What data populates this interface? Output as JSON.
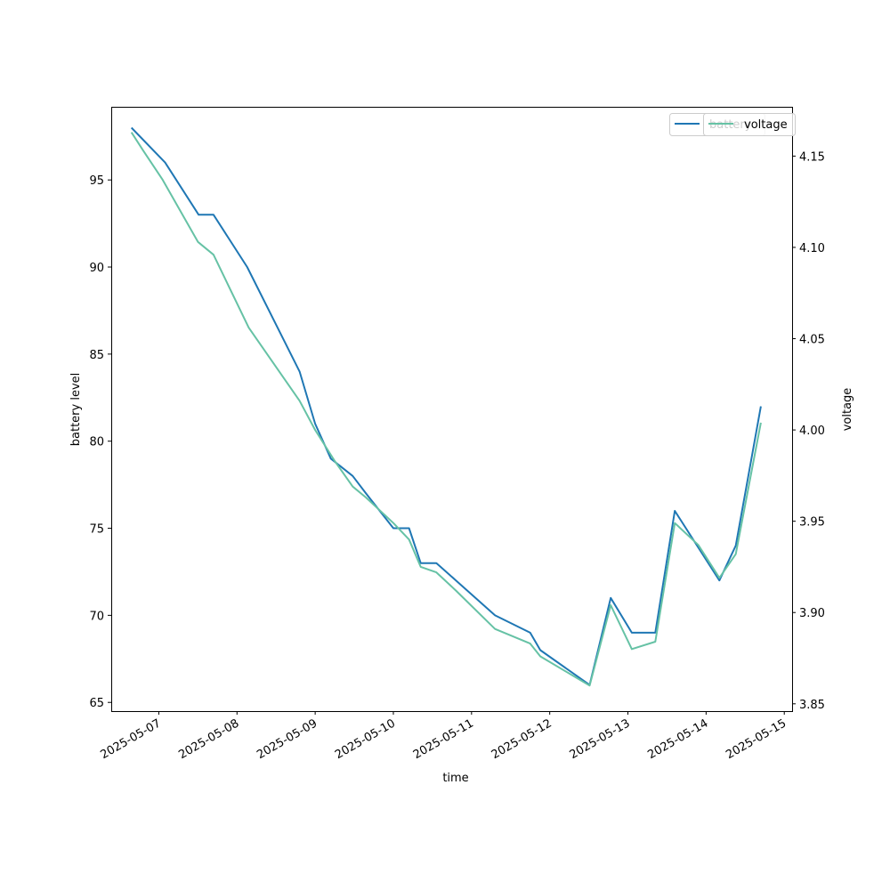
{
  "chart_data": {
    "type": "line",
    "xlabel": "time",
    "ylabel_left": "battery level",
    "ylabel_right": "voltage",
    "x_tick_labels": [
      "2025-05-07",
      "2025-05-08",
      "2025-05-09",
      "2025-05-10",
      "2025-05-11",
      "2025-05-12",
      "2025-05-13",
      "2025-05-14",
      "2025-05-15"
    ],
    "y_left_ticks": [
      65,
      70,
      75,
      80,
      85,
      90,
      95
    ],
    "y_right_ticks": [
      3.85,
      3.9,
      3.95,
      4.0,
      4.05,
      4.1,
      4.15
    ],
    "ylim_left": [
      64.5,
      99.2
    ],
    "ylim_right": [
      3.846,
      4.177
    ],
    "xlim": [
      "2025-05-06T09:24",
      "2025-05-15T02:24"
    ],
    "grid": false,
    "legend_left": {
      "placement": "top-right",
      "label": "battery"
    },
    "legend_right": {
      "placement": "top-right",
      "label": "voltage"
    },
    "series": [
      {
        "name": "battery",
        "axis": "left",
        "color": "#1f77b4",
        "points": [
          [
            "2025-05-06T15:36",
            98
          ],
          [
            "2025-05-07T01:55",
            96
          ],
          [
            "2025-05-07T12:14",
            93
          ],
          [
            "2025-05-07T16:48",
            93
          ],
          [
            "2025-05-08T03:07",
            90
          ],
          [
            "2025-05-08T19:12",
            84
          ],
          [
            "2025-05-09T00:00",
            81
          ],
          [
            "2025-05-09T04:48",
            79
          ],
          [
            "2025-05-09T11:31",
            78
          ],
          [
            "2025-05-09T15:36",
            77
          ],
          [
            "2025-05-10T00:00",
            75
          ],
          [
            "2025-05-10T04:48",
            75
          ],
          [
            "2025-05-10T08:24",
            73
          ],
          [
            "2025-05-10T13:12",
            73
          ],
          [
            "2025-05-10T19:12",
            72
          ],
          [
            "2025-05-11T07:12",
            70
          ],
          [
            "2025-05-11T18:00",
            69
          ],
          [
            "2025-05-11T21:07",
            68
          ],
          [
            "2025-05-12T12:14",
            66
          ],
          [
            "2025-05-12T18:43",
            71
          ],
          [
            "2025-05-13T01:12",
            69
          ],
          [
            "2025-05-13T08:24",
            69
          ],
          [
            "2025-05-13T14:24",
            76
          ],
          [
            "2025-05-14T04:04",
            72
          ],
          [
            "2025-05-14T09:07",
            74
          ],
          [
            "2025-05-14T16:48",
            82
          ]
        ]
      },
      {
        "name": "voltage",
        "axis": "right",
        "color": "#66c2a5",
        "points": [
          [
            "2025-05-06T15:36",
            4.163
          ],
          [
            "2025-05-06T19:12",
            4.153
          ],
          [
            "2025-05-07T01:12",
            4.137
          ],
          [
            "2025-05-07T12:00",
            4.103
          ],
          [
            "2025-05-07T16:48",
            4.096
          ],
          [
            "2025-05-08T03:36",
            4.056
          ],
          [
            "2025-05-08T19:12",
            4.016
          ],
          [
            "2025-05-09T00:00",
            4.0
          ],
          [
            "2025-05-09T06:00",
            3.983
          ],
          [
            "2025-05-09T11:31",
            3.969
          ],
          [
            "2025-05-09T15:36",
            3.963
          ],
          [
            "2025-05-10T00:00",
            3.949
          ],
          [
            "2025-05-10T04:48",
            3.94
          ],
          [
            "2025-05-10T08:24",
            3.925
          ],
          [
            "2025-05-10T13:12",
            3.922
          ],
          [
            "2025-05-10T19:12",
            3.912
          ],
          [
            "2025-05-11T07:12",
            3.891
          ],
          [
            "2025-05-11T18:00",
            3.883
          ],
          [
            "2025-05-11T21:07",
            3.876
          ],
          [
            "2025-05-12T12:14",
            3.86
          ],
          [
            "2025-05-12T18:43",
            3.904
          ],
          [
            "2025-05-13T01:12",
            3.88
          ],
          [
            "2025-05-13T08:24",
            3.884
          ],
          [
            "2025-05-13T14:24",
            3.949
          ],
          [
            "2025-05-13T21:36",
            3.937
          ],
          [
            "2025-05-14T04:04",
            3.919
          ],
          [
            "2025-05-14T09:07",
            3.932
          ],
          [
            "2025-05-14T16:48",
            4.004
          ]
        ]
      }
    ]
  }
}
